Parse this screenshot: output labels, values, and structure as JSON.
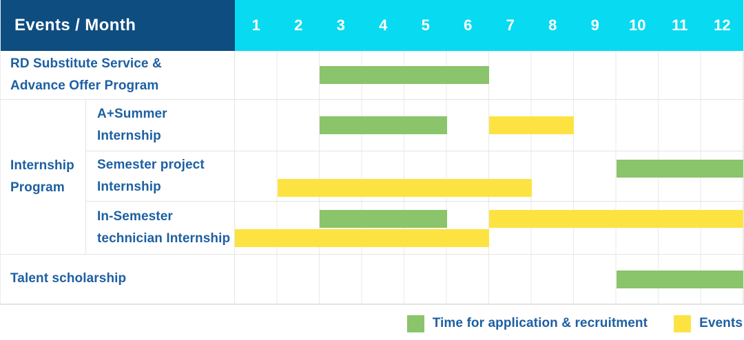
{
  "header": {
    "corner_label": "Events / Month",
    "months": [
      "1",
      "2",
      "3",
      "4",
      "5",
      "6",
      "7",
      "8",
      "9",
      "10",
      "11",
      "12"
    ]
  },
  "colors": {
    "header_navy": "#0e4d80",
    "header_cyan": "#08daf1",
    "bar_green": "#8ac46b",
    "bar_yellow": "#fde342",
    "label_blue": "#1d5fa3"
  },
  "chart_data": {
    "type": "gantt",
    "x_axis": {
      "label": "Month",
      "ticks": [
        1,
        2,
        3,
        4,
        5,
        6,
        7,
        8,
        9,
        10,
        11,
        12
      ],
      "range": [
        1,
        12
      ]
    },
    "grid": "on",
    "rows": [
      {
        "label": "RD Substitute Service &\nAdvance Offer Program",
        "group": "",
        "bars": [
          {
            "series": "Time for application & recruitment",
            "start_month": 3,
            "end_month": 6,
            "line": "center"
          }
        ]
      },
      {
        "label": "A+Summer\nInternship",
        "group": "Internship\nProgram",
        "bars": [
          {
            "series": "Time for application & recruitment",
            "start_month": 3,
            "end_month": 5,
            "line": "center"
          },
          {
            "series": "Events",
            "start_month": 7,
            "end_month": 8,
            "line": "center"
          }
        ]
      },
      {
        "label": "Semester project\nInternship",
        "group": "Internship\nProgram",
        "bars": [
          {
            "series": "Time for application & recruitment",
            "start_month": 10,
            "end_month": 12,
            "line": 1
          },
          {
            "series": "Events",
            "start_month": 2,
            "end_month": 7,
            "line": 2
          }
        ]
      },
      {
        "label": "In-Semester\ntechnician Internship",
        "group": "Internship\nProgram",
        "bars": [
          {
            "series": "Time for application & recruitment",
            "start_month": 3,
            "end_month": 5,
            "line": 1
          },
          {
            "series": "Events",
            "start_month": 7,
            "end_month": 12,
            "line": 1
          },
          {
            "series": "Events",
            "start_month": 1,
            "end_month": 6,
            "line": 2
          }
        ]
      },
      {
        "label": "Talent scholarship",
        "group": "",
        "bars": [
          {
            "series": "Time for application & recruitment",
            "start_month": 10,
            "end_month": 12,
            "line": "center"
          }
        ]
      }
    ]
  },
  "legend": {
    "items": [
      {
        "series": "Time for application & recruitment",
        "color_key": "bar_green"
      },
      {
        "series": "Events",
        "color_key": "bar_yellow"
      }
    ]
  }
}
